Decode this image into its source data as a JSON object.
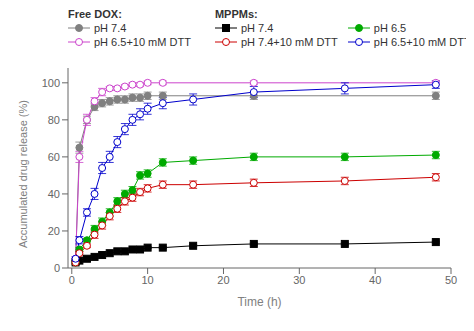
{
  "chart_data": {
    "type": "line",
    "xlabel": "Time (h)",
    "ylabel": "Accumulated drug release (%)",
    "xlim": [
      -0.5,
      50
    ],
    "ylim": [
      0,
      108
    ],
    "xticks": [
      0,
      10,
      20,
      30,
      40,
      50
    ],
    "yticks": [
      0,
      20,
      40,
      60,
      80,
      100
    ],
    "grid": false,
    "series": [
      {
        "name": "pH 7.4",
        "group": "Free DOX:",
        "color": "#808080",
        "marker": "circle",
        "x": [
          0.5,
          1,
          2,
          3,
          4,
          5,
          6,
          7,
          8,
          9,
          10,
          12,
          24,
          48
        ],
        "values": [
          4,
          65,
          80,
          87,
          89,
          90,
          91,
          91,
          92,
          92,
          93,
          93,
          93,
          93
        ],
        "yerr": [
          1,
          3,
          2,
          2,
          2,
          2,
          2,
          2,
          2,
          2,
          2,
          2,
          2,
          2
        ]
      },
      {
        "name": "pH 6.5+10 mM DTT",
        "group": "Free DOX:",
        "color": "#cc44cc",
        "marker": "open_circle",
        "x": [
          0.5,
          1,
          2,
          3,
          4,
          5,
          6,
          7,
          8,
          9,
          10,
          12,
          24,
          48
        ],
        "values": [
          5,
          60,
          80,
          90,
          95,
          97,
          97,
          98,
          99,
          99,
          100,
          100,
          100,
          100
        ],
        "yerr": [
          1,
          3,
          3,
          2,
          2,
          1,
          1,
          1,
          1,
          1,
          1,
          1,
          1,
          1
        ]
      },
      {
        "name": "pH 7.4",
        "group": "MPPMs:",
        "color": "#000000",
        "marker": "square",
        "x": [
          0.5,
          1,
          2,
          3,
          4,
          5,
          6,
          7,
          8,
          9,
          10,
          12,
          16,
          24,
          36,
          48
        ],
        "values": [
          3,
          4,
          5,
          6,
          7,
          8,
          9,
          9,
          10,
          10,
          11,
          11,
          12,
          13,
          13,
          14
        ],
        "yerr": [
          0.5,
          0.5,
          0.5,
          0.5,
          0.5,
          0.5,
          0.5,
          0.5,
          0.5,
          0.5,
          0.5,
          0.5,
          0.5,
          0.5,
          0.5,
          0.5
        ]
      },
      {
        "name": "pH 6.5",
        "group": "MPPMs:",
        "color": "#00aa00",
        "marker": "circle",
        "x": [
          0.5,
          1,
          2,
          3,
          4,
          5,
          6,
          7,
          8,
          9,
          10,
          12,
          16,
          24,
          36,
          48
        ],
        "values": [
          3,
          10,
          15,
          21,
          25,
          30,
          36,
          40,
          42,
          50,
          51,
          57,
          58,
          60,
          60,
          61
        ],
        "yerr": [
          1,
          1,
          1,
          2,
          2,
          2,
          2,
          2,
          2,
          2,
          2,
          2,
          2,
          2,
          2,
          2
        ]
      },
      {
        "name": "pH 7.4+10 mM DTT",
        "group": "MPPMs:",
        "color": "#cc0000",
        "marker": "open_circle",
        "x": [
          0.5,
          1,
          2,
          3,
          4,
          5,
          6,
          7,
          8,
          9,
          10,
          12,
          16,
          24,
          36,
          48
        ],
        "values": [
          3,
          8,
          12,
          18,
          23,
          28,
          32,
          36,
          38,
          41,
          43,
          45,
          45,
          46,
          47,
          49
        ],
        "yerr": [
          1,
          1,
          1,
          2,
          2,
          2,
          2,
          2,
          2,
          2,
          2,
          2,
          2,
          2,
          2,
          2
        ]
      },
      {
        "name": "pH 6.5+10 mM DTT",
        "group": "MPPMs:",
        "color": "#0000cc",
        "marker": "open_circle",
        "x": [
          0.5,
          1,
          2,
          3,
          4,
          5,
          6,
          7,
          8,
          9,
          10,
          12,
          16,
          24,
          36,
          48
        ],
        "values": [
          5,
          15,
          30,
          40,
          54,
          60,
          68,
          75,
          80,
          83,
          86,
          89,
          91,
          95,
          97,
          99
        ],
        "yerr": [
          1,
          2,
          2,
          3,
          3,
          3,
          3,
          3,
          3,
          3,
          3,
          3,
          3,
          3,
          3,
          2
        ]
      }
    ]
  }
}
